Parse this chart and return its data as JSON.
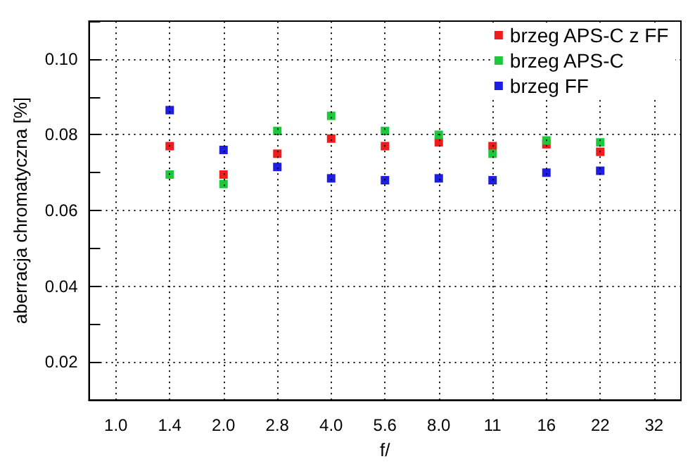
{
  "chart_data": {
    "type": "scatter",
    "xlabel": "f/",
    "ylabel": "aberracja chromatyczna [%]",
    "categories": [
      "1.0",
      "1.4",
      "2.0",
      "2.8",
      "4.0",
      "5.6",
      "8.0",
      "11",
      "16",
      "22",
      "32"
    ],
    "series": [
      {
        "name": "brzeg APS-C z FF",
        "color": "#ee1c1c",
        "values": [
          null,
          0.077,
          0.0695,
          0.075,
          0.079,
          0.077,
          0.078,
          0.077,
          0.0775,
          0.0755,
          null
        ]
      },
      {
        "name": "brzeg APS-C",
        "color": "#1ec83c",
        "values": [
          null,
          0.0695,
          0.067,
          0.081,
          0.085,
          0.081,
          0.08,
          0.075,
          0.0785,
          0.078,
          null
        ]
      },
      {
        "name": "brzeg FF",
        "color": "#1e1ee0",
        "values": [
          null,
          0.0865,
          0.076,
          0.0715,
          0.0685,
          0.068,
          0.0685,
          0.068,
          0.07,
          0.0705,
          null
        ]
      }
    ],
    "ylim": [
      0.01,
      0.11
    ],
    "yticks": [
      {
        "value": 0.01,
        "label": null
      },
      {
        "value": 0.02,
        "label": "0.02"
      },
      {
        "value": 0.03,
        "label": null
      },
      {
        "value": 0.04,
        "label": "0.04"
      },
      {
        "value": 0.05,
        "label": null
      },
      {
        "value": 0.06,
        "label": "0.06"
      },
      {
        "value": 0.07,
        "label": null
      },
      {
        "value": 0.08,
        "label": "0.08"
      },
      {
        "value": 0.09,
        "label": null
      },
      {
        "value": 0.1,
        "label": "0.10"
      },
      {
        "value": 0.11,
        "label": null
      }
    ],
    "grid": true,
    "legend": "top right",
    "marker": "square"
  }
}
